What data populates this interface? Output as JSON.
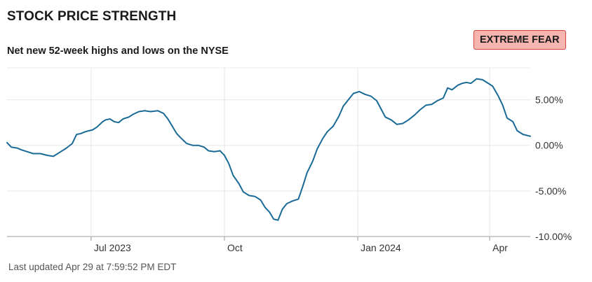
{
  "header": {
    "title": "STOCK PRICE STRENGTH",
    "subtitle": "Net new 52-week highs and lows on the NYSE",
    "status_badge": "EXTREME FEAR",
    "status_color": "#f7b5b0",
    "status_border_color": "#d6453f"
  },
  "footer": {
    "updated": "Last updated Apr 29 at 7:59:52 PM EDT"
  },
  "chart_data": {
    "type": "line",
    "title": "STOCK PRICE STRENGTH",
    "subtitle": "Net new 52-week highs and lows on the NYSE",
    "xlabel": "",
    "ylabel": "",
    "ylim": [
      -10,
      8.5
    ],
    "xlim": [
      "2023-05-04",
      "2024-04-29"
    ],
    "grid": true,
    "legend": "none",
    "line_color": "#1a6a96",
    "x_ticks": [
      {
        "date": "2023-07-01",
        "label": "Jul 2023"
      },
      {
        "date": "2023-10-01",
        "label": "Oct"
      },
      {
        "date": "2024-01-01",
        "label": "Jan 2024"
      },
      {
        "date": "2024-04-01",
        "label": "Apr"
      }
    ],
    "y_ticks": [
      {
        "value": 5,
        "label": "5.00%"
      },
      {
        "value": 0,
        "label": "0.00%"
      },
      {
        "value": -5,
        "label": "-5.00%"
      },
      {
        "value": -10,
        "label": "-10.00%"
      }
    ],
    "series": [
      {
        "values": [
          [
            "2023-05-04",
            0.3
          ],
          [
            "2023-05-07",
            -0.2
          ],
          [
            "2023-05-11",
            -0.3
          ],
          [
            "2023-05-14",
            -0.5
          ],
          [
            "2023-05-18",
            -0.7
          ],
          [
            "2023-05-22",
            -0.9
          ],
          [
            "2023-05-27",
            -0.9
          ],
          [
            "2023-06-01",
            -1.1
          ],
          [
            "2023-06-05",
            -1.2
          ],
          [
            "2023-06-09",
            -0.8
          ],
          [
            "2023-06-14",
            -0.3
          ],
          [
            "2023-06-18",
            0.2
          ],
          [
            "2023-06-21",
            1.2
          ],
          [
            "2023-06-24",
            1.3
          ],
          [
            "2023-06-27",
            1.5
          ],
          [
            "2023-07-02",
            1.7
          ],
          [
            "2023-07-05",
            2.0
          ],
          [
            "2023-07-09",
            2.6
          ],
          [
            "2023-07-11",
            2.8
          ],
          [
            "2023-07-14",
            2.9
          ],
          [
            "2023-07-17",
            2.6
          ],
          [
            "2023-07-20",
            2.5
          ],
          [
            "2023-07-23",
            2.9
          ],
          [
            "2023-07-27",
            3.1
          ],
          [
            "2023-07-30",
            3.4
          ],
          [
            "2023-08-03",
            3.7
          ],
          [
            "2023-08-07",
            3.8
          ],
          [
            "2023-08-11",
            3.7
          ],
          [
            "2023-08-16",
            3.8
          ],
          [
            "2023-08-20",
            3.5
          ],
          [
            "2023-08-23",
            2.9
          ],
          [
            "2023-08-26",
            2.1
          ],
          [
            "2023-08-29",
            1.3
          ],
          [
            "2023-09-01",
            0.8
          ],
          [
            "2023-09-05",
            0.2
          ],
          [
            "2023-09-09",
            0.0
          ],
          [
            "2023-09-13",
            0.0
          ],
          [
            "2023-09-17",
            -0.2
          ],
          [
            "2023-09-20",
            -0.6
          ],
          [
            "2023-09-24",
            -0.7
          ],
          [
            "2023-09-28",
            -0.6
          ],
          [
            "2023-10-01",
            -1.1
          ],
          [
            "2023-10-04",
            -2.0
          ],
          [
            "2023-10-07",
            -3.3
          ],
          [
            "2023-10-11",
            -4.2
          ],
          [
            "2023-10-14",
            -5.1
          ],
          [
            "2023-10-18",
            -5.5
          ],
          [
            "2023-10-22",
            -5.6
          ],
          [
            "2023-10-26",
            -6.0
          ],
          [
            "2023-10-29",
            -6.8
          ],
          [
            "2023-11-01",
            -7.3
          ],
          [
            "2023-11-04",
            -8.1
          ],
          [
            "2023-11-07",
            -8.2
          ],
          [
            "2023-11-10",
            -7.0
          ],
          [
            "2023-11-13",
            -6.4
          ],
          [
            "2023-11-17",
            -6.1
          ],
          [
            "2023-11-21",
            -5.9
          ],
          [
            "2023-11-24",
            -4.5
          ],
          [
            "2023-11-27",
            -3.0
          ],
          [
            "2023-12-01",
            -1.7
          ],
          [
            "2023-12-04",
            -0.4
          ],
          [
            "2023-12-08",
            0.8
          ],
          [
            "2023-12-11",
            1.5
          ],
          [
            "2023-12-15",
            2.1
          ],
          [
            "2023-12-19",
            3.2
          ],
          [
            "2023-12-22",
            4.3
          ],
          [
            "2023-12-26",
            5.1
          ],
          [
            "2023-12-29",
            5.7
          ],
          [
            "2024-01-02",
            5.9
          ],
          [
            "2024-01-06",
            5.6
          ],
          [
            "2024-01-10",
            5.4
          ],
          [
            "2024-01-14",
            4.9
          ],
          [
            "2024-01-17",
            4.0
          ],
          [
            "2024-01-20",
            3.1
          ],
          [
            "2024-01-24",
            2.8
          ],
          [
            "2024-01-28",
            2.3
          ],
          [
            "2024-02-01",
            2.4
          ],
          [
            "2024-02-05",
            2.8
          ],
          [
            "2024-02-09",
            3.3
          ],
          [
            "2024-02-13",
            3.9
          ],
          [
            "2024-02-17",
            4.4
          ],
          [
            "2024-02-21",
            4.5
          ],
          [
            "2024-02-25",
            4.9
          ],
          [
            "2024-02-29",
            5.2
          ],
          [
            "2024-03-03",
            6.3
          ],
          [
            "2024-03-06",
            6.1
          ],
          [
            "2024-03-10",
            6.6
          ],
          [
            "2024-03-13",
            6.8
          ],
          [
            "2024-03-16",
            6.9
          ],
          [
            "2024-03-19",
            6.8
          ],
          [
            "2024-03-23",
            7.3
          ],
          [
            "2024-03-27",
            7.2
          ],
          [
            "2024-03-31",
            6.8
          ],
          [
            "2024-04-03",
            6.5
          ],
          [
            "2024-04-07",
            5.4
          ],
          [
            "2024-04-10",
            4.4
          ],
          [
            "2024-04-13",
            3.0
          ],
          [
            "2024-04-17",
            2.6
          ],
          [
            "2024-04-20",
            1.6
          ],
          [
            "2024-04-24",
            1.2
          ],
          [
            "2024-04-29",
            1.0
          ]
        ]
      }
    ]
  }
}
